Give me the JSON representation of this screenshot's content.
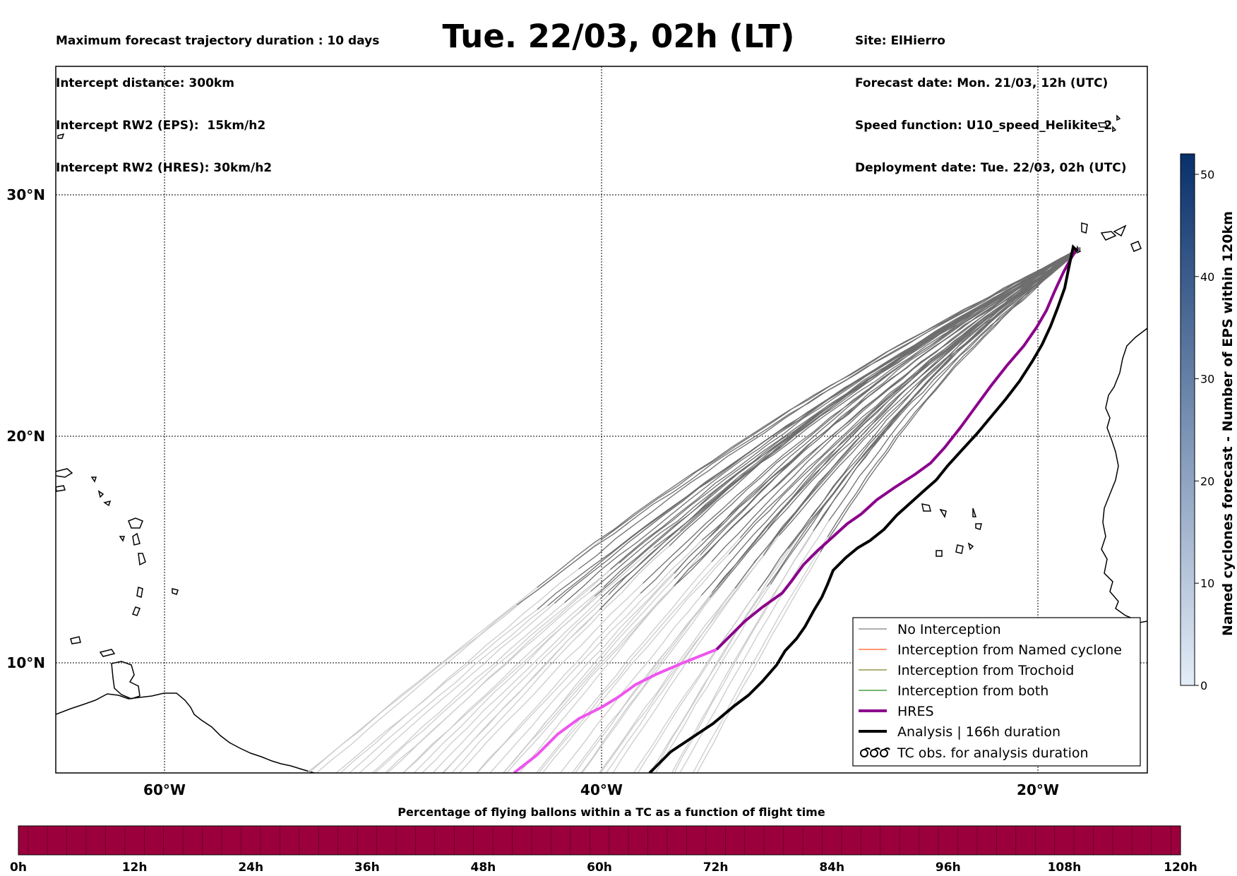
{
  "header": {
    "left_lines": [
      "Maximum forecast trajectory duration : 10 days",
      "Intercept distance: 300km",
      "Intercept RW2 (EPS):  15km/h2",
      "Intercept RW2 (HRES): 30km/h2"
    ],
    "title": "Tue. 22/03, 02h (LT)",
    "right_lines": [
      "Site: ElHierro",
      "Forecast date: Mon. 21/03, 12h (UTC)",
      "Speed function: U10_speed_Helikite_2",
      "Deployment date: Tue. 22/03, 02h (UTC)"
    ]
  },
  "map": {
    "lon_labels": [
      "60°W",
      "40°W",
      "20°W"
    ],
    "lat_labels": [
      "30°N",
      "20°N",
      "10°N"
    ],
    "colors": {
      "eps_trajectory": "#6e6e6e",
      "eps_trajectory_early": "#cccccc",
      "hres": "#8b008b",
      "hres_early": "#ee55ee",
      "analysis": "#000000",
      "coastline": "#000000"
    }
  },
  "legend": {
    "items": [
      {
        "label": "No Interception",
        "color": "#7f7f7f",
        "style": "thin"
      },
      {
        "label": "Interception from Named cyclone",
        "color": "#ff5a1e",
        "style": "thin"
      },
      {
        "label": "Interception from Trochoid",
        "color": "#808020",
        "style": "thin"
      },
      {
        "label": "Interception from both",
        "color": "#228b22",
        "style": "thin"
      },
      {
        "label": "HRES",
        "color": "#8b008b",
        "style": "thick"
      },
      {
        "label": "Analysis | 166h duration",
        "color": "#000000",
        "style": "thick"
      },
      {
        "label": "TC obs. for analysis duration",
        "color": "#000000",
        "style": "symbol"
      }
    ]
  },
  "colorbar": {
    "label": "Named cyclones forecast - Number of EPS within 120km",
    "ticks": [
      "0",
      "10",
      "20",
      "30",
      "40",
      "50"
    ],
    "max": 52,
    "colors": [
      "#e4edf8",
      "#08306b"
    ]
  },
  "timeline": {
    "label": "Percentage of flying ballons within a TC as a function of flight time",
    "ticks": [
      "0h",
      "12h",
      "24h",
      "36h",
      "48h",
      "60h",
      "72h",
      "84h",
      "96h",
      "108h",
      "120h"
    ],
    "color": "#9b003c"
  }
}
